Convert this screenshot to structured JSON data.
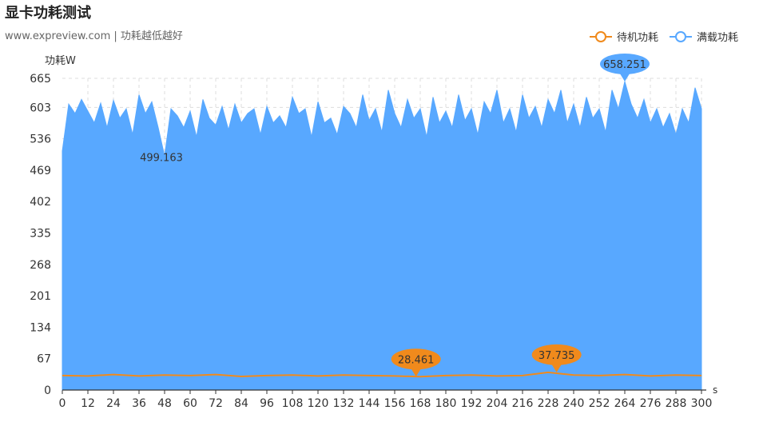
{
  "header": {
    "title": "显卡功耗测试",
    "subtitle": "www.expreview.com | 功耗越低越好"
  },
  "colors": {
    "idle": "#f08a1c",
    "load": "#58a8ff",
    "axis": "#333333",
    "grid": "#dddddd"
  },
  "chart_data": {
    "type": "area",
    "ylabel": "功耗W",
    "xlabel": "s",
    "xlim": [
      0,
      300
    ],
    "ylim": [
      0,
      665
    ],
    "y_ticks": [
      0,
      67,
      134,
      201,
      268,
      335,
      402,
      469,
      536,
      603,
      665
    ],
    "x_ticks": [
      0,
      12,
      24,
      36,
      48,
      60,
      72,
      84,
      96,
      108,
      120,
      132,
      144,
      156,
      168,
      180,
      192,
      204,
      216,
      228,
      240,
      252,
      264,
      276,
      288,
      300
    ],
    "grid": true,
    "legend_position": "top-right",
    "series": [
      {
        "name": "待机功耗",
        "color": "#f08a1c",
        "x": [
          0,
          12,
          24,
          36,
          48,
          60,
          72,
          84,
          96,
          108,
          120,
          132,
          144,
          156,
          168,
          180,
          192,
          204,
          216,
          228,
          240,
          252,
          264,
          276,
          288,
          300
        ],
        "y": [
          31,
          30,
          33,
          30,
          32,
          31,
          33,
          29,
          31,
          32,
          30,
          32,
          31,
          30,
          28.461,
          31,
          32,
          30,
          31,
          37.735,
          32,
          31,
          33,
          30,
          32,
          31
        ],
        "markers": [
          {
            "x": 166,
            "y": 28.461,
            "label": "28.461"
          },
          {
            "x": 232,
            "y": 37.735,
            "label": "37.735"
          }
        ]
      },
      {
        "name": "满载功耗",
        "color": "#58a8ff",
        "x": [
          0,
          3,
          6,
          9,
          12,
          15,
          18,
          21,
          24,
          27,
          30,
          33,
          36,
          39,
          42,
          45,
          48,
          51,
          54,
          57,
          60,
          63,
          66,
          69,
          72,
          75,
          78,
          81,
          84,
          87,
          90,
          93,
          96,
          99,
          102,
          105,
          108,
          111,
          114,
          117,
          120,
          123,
          126,
          129,
          132,
          135,
          138,
          141,
          144,
          147,
          150,
          153,
          156,
          159,
          162,
          165,
          168,
          171,
          174,
          177,
          180,
          183,
          186,
          189,
          192,
          195,
          198,
          201,
          204,
          207,
          210,
          213,
          216,
          219,
          222,
          225,
          228,
          231,
          234,
          237,
          240,
          243,
          246,
          249,
          252,
          255,
          258,
          261,
          264,
          267,
          270,
          273,
          276,
          279,
          282,
          285,
          288,
          291,
          294,
          297,
          300
        ],
        "y": [
          510,
          610,
          590,
          620,
          595,
          570,
          612,
          560,
          618,
          580,
          600,
          545,
          630,
          590,
          615,
          560,
          499.163,
          600,
          585,
          560,
          595,
          540,
          620,
          580,
          565,
          605,
          555,
          610,
          570,
          590,
          600,
          545,
          605,
          570,
          585,
          560,
          625,
          590,
          600,
          540,
          615,
          570,
          580,
          545,
          605,
          590,
          560,
          630,
          575,
          600,
          550,
          640,
          590,
          560,
          620,
          580,
          600,
          540,
          625,
          570,
          595,
          560,
          630,
          575,
          600,
          545,
          615,
          590,
          640,
          570,
          600,
          550,
          630,
          580,
          605,
          560,
          620,
          590,
          640,
          570,
          610,
          560,
          625,
          580,
          600,
          550,
          640,
          600,
          658.251,
          610,
          580,
          620,
          570,
          600,
          560,
          590,
          545,
          600,
          570,
          645,
          600
        ],
        "markers": [
          {
            "x": 264,
            "y": 658.251,
            "label": "658.251"
          },
          {
            "x": 48,
            "y": 499.163,
            "label": "499.163"
          }
        ]
      }
    ]
  }
}
